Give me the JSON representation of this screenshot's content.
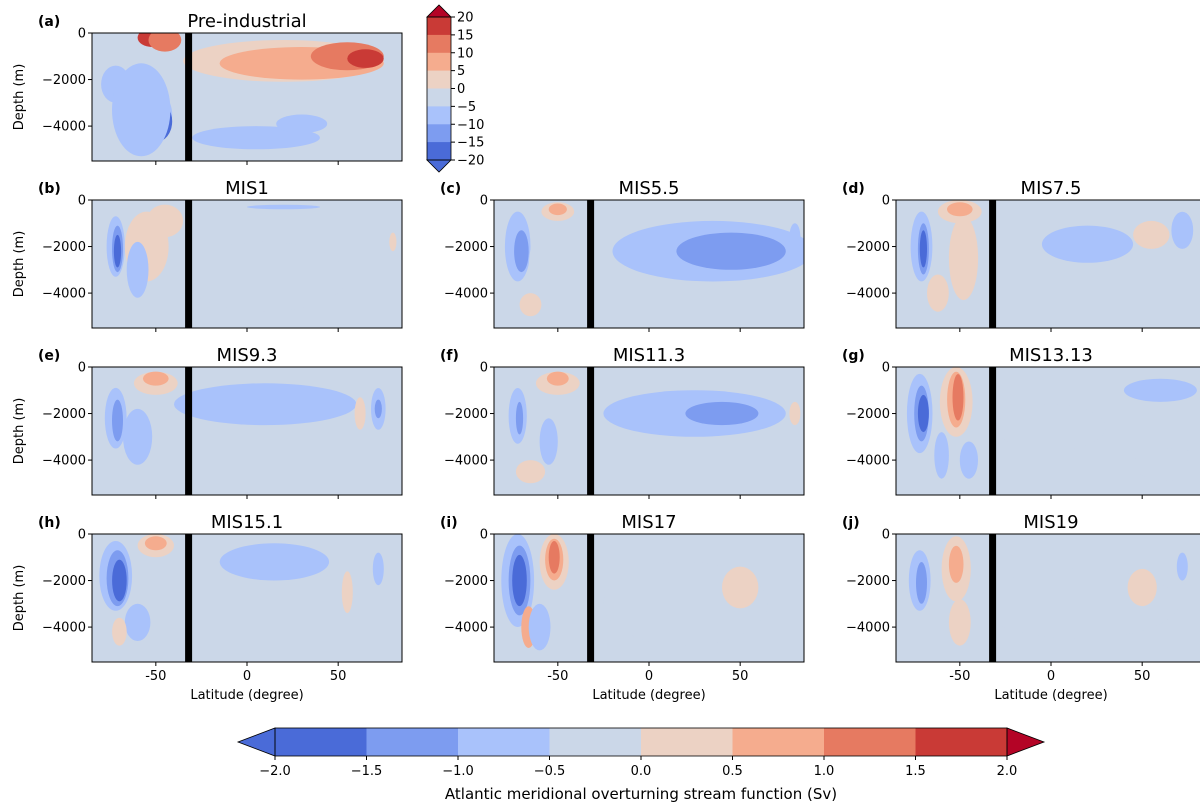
{
  "colors": {
    "levels": [
      "#4a6bd8",
      "#7d9cf0",
      "#a9c2fb",
      "#cbd7e8",
      "#ecd2c4",
      "#f5ac8e",
      "#e67a61",
      "#c93a36"
    ],
    "under": "#4a6bd8",
    "over": "#b40426",
    "barrier": "#000000"
  },
  "chart_data": {
    "type": "heatmap",
    "x_ticks": [
      "-50",
      "0",
      "50"
    ],
    "y_ticks": [
      "0",
      "−2000",
      "−4000"
    ],
    "xlabel": "Latitude (degree)",
    "ylabel": "Depth (m)",
    "xlim": [
      -85,
      85
    ],
    "ylim": [
      -5500,
      0
    ],
    "barrier_latitude": -32,
    "panels": [
      {
        "id": "a",
        "letter": "(a)",
        "title": "Pre-industrial",
        "cells": [
          [
            -72,
            -2200,
            800,
            8,
            -1
          ],
          [
            -60,
            -3600,
            1000,
            9,
            -2
          ],
          [
            -55,
            -3500,
            1200,
            14,
            -1
          ],
          [
            -50,
            -3800,
            900,
            9,
            -3
          ],
          [
            -52,
            -200,
            400,
            8,
            4
          ],
          [
            -45,
            -300,
            500,
            9,
            3
          ],
          [
            -58,
            -3300,
            2000,
            16,
            -1
          ],
          [
            20,
            -1200,
            900,
            55,
            1
          ],
          [
            30,
            -1300,
            700,
            45,
            2
          ],
          [
            55,
            -1000,
            600,
            20,
            3
          ],
          [
            65,
            -1100,
            400,
            10,
            4
          ],
          [
            5,
            -4500,
            500,
            35,
            -1
          ],
          [
            30,
            -3900,
            400,
            14,
            -1
          ]
        ]
      },
      {
        "id": "b",
        "letter": "(b)",
        "title": "MIS1",
        "cells": [
          [
            -72,
            -2000,
            1300,
            5,
            -1
          ],
          [
            -71,
            -2100,
            1000,
            3,
            -2
          ],
          [
            -71,
            -2200,
            700,
            2,
            -3
          ],
          [
            -55,
            -2000,
            1500,
            12,
            1
          ],
          [
            -60,
            -3000,
            1200,
            6,
            -1
          ],
          [
            -45,
            -900,
            700,
            10,
            1
          ],
          [
            10,
            -3300,
            1500,
            45,
            0
          ],
          [
            80,
            -1800,
            400,
            2,
            1
          ],
          [
            20,
            -300,
            100,
            20,
            -1
          ]
        ]
      },
      {
        "id": "c",
        "letter": "(c)",
        "title": "MIS5.5",
        "cells": [
          [
            -72,
            -2000,
            1500,
            7,
            -1
          ],
          [
            -70,
            -2200,
            900,
            4,
            -2
          ],
          [
            -50,
            -500,
            400,
            9,
            1
          ],
          [
            -50,
            -400,
            250,
            5,
            2
          ],
          [
            -60,
            -3000,
            1600,
            6,
            0
          ],
          [
            35,
            -2200,
            1300,
            55,
            -1
          ],
          [
            45,
            -2200,
            800,
            30,
            -2
          ],
          [
            80,
            -1600,
            600,
            3,
            -1
          ],
          [
            -65,
            -4500,
            500,
            6,
            1
          ]
        ]
      },
      {
        "id": "d",
        "letter": "(d)",
        "title": "MIS7.5",
        "cells": [
          [
            -71,
            -2000,
            1500,
            6,
            -1
          ],
          [
            -70,
            -2100,
            1100,
            3,
            -2
          ],
          [
            -70,
            -2100,
            800,
            2,
            -3
          ],
          [
            -50,
            -500,
            500,
            12,
            1
          ],
          [
            -50,
            -400,
            300,
            7,
            2
          ],
          [
            -48,
            -2500,
            1800,
            8,
            1
          ],
          [
            20,
            -1900,
            800,
            25,
            -1
          ],
          [
            55,
            -1500,
            600,
            10,
            1
          ],
          [
            72,
            -1300,
            800,
            6,
            -1
          ],
          [
            -62,
            -4000,
            800,
            6,
            1
          ]
        ]
      },
      {
        "id": "e",
        "letter": "(e)",
        "title": "MIS9.3",
        "cells": [
          [
            -72,
            -2200,
            1300,
            6,
            -1
          ],
          [
            -71,
            -2300,
            900,
            3,
            -2
          ],
          [
            -50,
            -700,
            500,
            12,
            1
          ],
          [
            -50,
            -500,
            300,
            7,
            2
          ],
          [
            10,
            -1600,
            900,
            50,
            -1
          ],
          [
            72,
            -1800,
            900,
            4,
            -1
          ],
          [
            72,
            -1800,
            400,
            2,
            -2
          ],
          [
            62,
            -2000,
            700,
            3,
            1
          ],
          [
            -60,
            -3000,
            1200,
            8,
            -1
          ]
        ]
      },
      {
        "id": "f",
        "letter": "(f)",
        "title": "MIS11.3",
        "cells": [
          [
            -72,
            -2100,
            1200,
            5,
            -1
          ],
          [
            -71,
            -2200,
            700,
            2,
            -2
          ],
          [
            -50,
            -700,
            500,
            12,
            1
          ],
          [
            -50,
            -500,
            300,
            6,
            2
          ],
          [
            25,
            -2000,
            1000,
            50,
            -1
          ],
          [
            40,
            -2000,
            500,
            20,
            -2
          ],
          [
            80,
            -2000,
            500,
            3,
            1
          ],
          [
            -65,
            -4500,
            500,
            8,
            1
          ],
          [
            -55,
            -3200,
            1000,
            5,
            -1
          ]
        ]
      },
      {
        "id": "g",
        "letter": "(g)",
        "title": "MIS13.13",
        "cells": [
          [
            -72,
            -2000,
            1700,
            7,
            -1
          ],
          [
            -71,
            -2000,
            1200,
            4,
            -2
          ],
          [
            -70,
            -2000,
            800,
            3,
            -3
          ],
          [
            -52,
            -1500,
            1500,
            9,
            1
          ],
          [
            -52,
            -1400,
            1200,
            5,
            2
          ],
          [
            -51,
            -1300,
            1000,
            3,
            3
          ],
          [
            -60,
            -3800,
            1000,
            4,
            -1
          ],
          [
            -45,
            -4000,
            800,
            5,
            -1
          ],
          [
            0,
            -2600,
            1000,
            30,
            0
          ],
          [
            60,
            -1000,
            500,
            20,
            -1
          ],
          [
            65,
            -4200,
            700,
            20,
            0
          ]
        ]
      },
      {
        "id": "h",
        "letter": "(h)",
        "title": "MIS15.1",
        "cells": [
          [
            -72,
            -1800,
            1500,
            9,
            -1
          ],
          [
            -71,
            -1900,
            1200,
            6,
            -2
          ],
          [
            -70,
            -2000,
            900,
            4,
            -3
          ],
          [
            -50,
            -500,
            500,
            10,
            1
          ],
          [
            -50,
            -400,
            300,
            6,
            2
          ],
          [
            -60,
            -3800,
            800,
            7,
            -1
          ],
          [
            -70,
            -4200,
            600,
            4,
            1
          ],
          [
            55,
            -2500,
            900,
            3,
            1
          ],
          [
            72,
            -1500,
            700,
            3,
            -1
          ],
          [
            15,
            -1200,
            800,
            30,
            -1
          ]
        ]
      },
      {
        "id": "i",
        "letter": "(i)",
        "title": "MIS17",
        "cells": [
          [
            -72,
            -2000,
            2000,
            9,
            -1
          ],
          [
            -71,
            -2000,
            1500,
            6,
            -2
          ],
          [
            -71,
            -2000,
            1100,
            4,
            -3
          ],
          [
            -52,
            -1200,
            1200,
            8,
            1
          ],
          [
            -52,
            -1100,
            900,
            5,
            2
          ],
          [
            -52,
            -1000,
            700,
            3,
            3
          ],
          [
            -66,
            -4000,
            900,
            4,
            2
          ],
          [
            -60,
            -4000,
            1000,
            6,
            -1
          ],
          [
            20,
            -3000,
            1800,
            45,
            0
          ],
          [
            50,
            -2300,
            900,
            10,
            1
          ]
        ]
      },
      {
        "id": "j",
        "letter": "(j)",
        "title": "MIS19",
        "cells": [
          [
            -72,
            -2000,
            1300,
            6,
            -1
          ],
          [
            -71,
            -2100,
            900,
            3,
            -2
          ],
          [
            -52,
            -1500,
            1400,
            8,
            1
          ],
          [
            -52,
            -1300,
            800,
            4,
            2
          ],
          [
            -50,
            -3800,
            1000,
            6,
            1
          ],
          [
            15,
            -3000,
            1500,
            55,
            0
          ],
          [
            50,
            -2300,
            800,
            8,
            1
          ],
          [
            72,
            -1400,
            600,
            3,
            -1
          ]
        ]
      }
    ],
    "colorbar_small": {
      "ticks": [
        "20",
        "15",
        "10",
        "5",
        "0",
        "−5",
        "−10",
        "−15",
        "−20"
      ]
    },
    "colorbar_main": {
      "ticks": [
        "−2.0",
        "−1.5",
        "−1.0",
        "−0.5",
        "0.0",
        "0.5",
        "1.0",
        "1.5",
        "2.0"
      ],
      "label": "Atlantic meridional overturning stream function (Sv)"
    }
  }
}
